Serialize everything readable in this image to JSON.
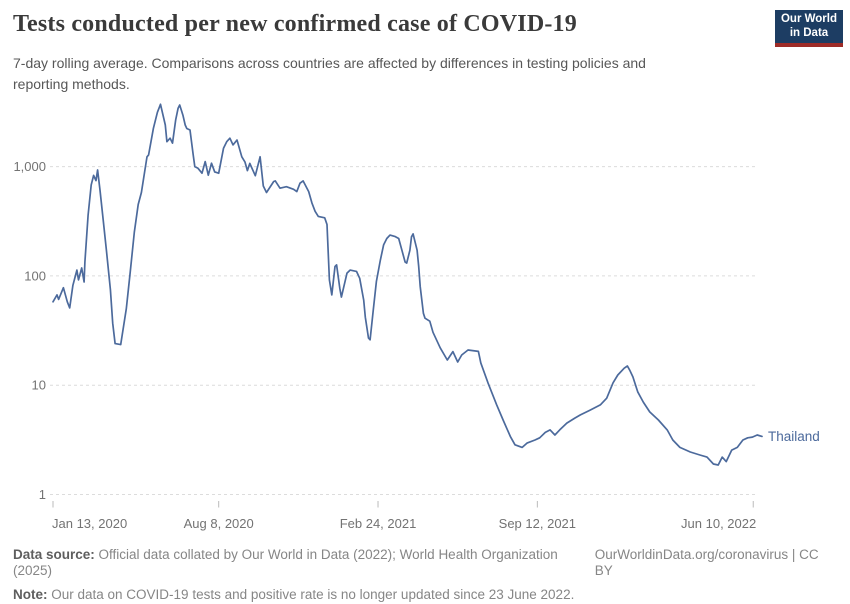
{
  "logo": {
    "line1": "Our World",
    "line2": "in Data"
  },
  "chart_data": {
    "type": "line",
    "title": "Tests conducted per new confirmed case of COVID-19",
    "subtitle_lines": [
      "7-day rolling average. Comparisons across countries are affected by differences in testing policies and",
      "reporting methods."
    ],
    "log_scale_y": true,
    "grid": "horizontal-dashed",
    "ylim": [
      1,
      4000
    ],
    "y_ticks": [
      {
        "value": 1000,
        "label": "1,000"
      },
      {
        "value": 100,
        "label": "100"
      },
      {
        "value": 10,
        "label": "10"
      },
      {
        "value": 1,
        "label": "1"
      }
    ],
    "x_axis_note": "days since Jan 13, 2020",
    "x_range_days": [
      0,
      890
    ],
    "x_ticks": [
      {
        "day": 0,
        "label": "Jan 13, 2020"
      },
      {
        "day": 208,
        "label": "Aug 8, 2020"
      },
      {
        "day": 408,
        "label": "Feb 24, 2021"
      },
      {
        "day": 608,
        "label": "Sep 12, 2021"
      },
      {
        "day": 879,
        "label": "Jun 10, 2022"
      }
    ],
    "legend_position": "end-of-line",
    "series": [
      {
        "name": "Thailand",
        "color": "#4C6A9C",
        "points": [
          [
            0,
            58
          ],
          [
            5,
            67
          ],
          [
            7,
            61
          ],
          [
            13,
            78
          ],
          [
            18,
            58
          ],
          [
            21,
            51
          ],
          [
            25,
            82
          ],
          [
            30,
            113
          ],
          [
            32,
            92
          ],
          [
            36,
            118
          ],
          [
            39,
            88
          ],
          [
            40,
            134
          ],
          [
            44,
            360
          ],
          [
            48,
            680
          ],
          [
            51,
            830
          ],
          [
            54,
            745
          ],
          [
            56,
            930
          ],
          [
            59,
            610
          ],
          [
            63,
            325
          ],
          [
            67,
            172
          ],
          [
            72,
            75
          ],
          [
            75,
            37
          ],
          [
            78,
            24
          ],
          [
            85,
            23.5
          ],
          [
            92,
            50
          ],
          [
            97,
            110
          ],
          [
            102,
            250
          ],
          [
            107,
            450
          ],
          [
            111,
            580
          ],
          [
            118,
            1230
          ],
          [
            120,
            1280
          ],
          [
            126,
            2240
          ],
          [
            131,
            3140
          ],
          [
            135,
            3715
          ],
          [
            141,
            2400
          ],
          [
            143,
            1690
          ],
          [
            147,
            1820
          ],
          [
            150,
            1640
          ],
          [
            154,
            2680
          ],
          [
            157,
            3420
          ],
          [
            159,
            3660
          ],
          [
            163,
            2960
          ],
          [
            166,
            2400
          ],
          [
            168,
            2230
          ],
          [
            172,
            2160
          ],
          [
            176,
            1280
          ],
          [
            178,
            1000
          ],
          [
            182,
            965
          ],
          [
            187,
            870
          ],
          [
            191,
            1110
          ],
          [
            195,
            835
          ],
          [
            199,
            1075
          ],
          [
            203,
            895
          ],
          [
            208,
            870
          ],
          [
            214,
            1470
          ],
          [
            218,
            1690
          ],
          [
            222,
            1820
          ],
          [
            226,
            1580
          ],
          [
            231,
            1750
          ],
          [
            237,
            1230
          ],
          [
            241,
            1100
          ],
          [
            244,
            920
          ],
          [
            247,
            1070
          ],
          [
            254,
            825
          ],
          [
            260,
            1230
          ],
          [
            264,
            665
          ],
          [
            268,
            580
          ],
          [
            277,
            730
          ],
          [
            279,
            740
          ],
          [
            285,
            635
          ],
          [
            293,
            655
          ],
          [
            302,
            620
          ],
          [
            306,
            590
          ],
          [
            310,
            705
          ],
          [
            314,
            740
          ],
          [
            321,
            590
          ],
          [
            325,
            465
          ],
          [
            329,
            390
          ],
          [
            333,
            350
          ],
          [
            341,
            340
          ],
          [
            344,
            295
          ],
          [
            347,
            92
          ],
          [
            350,
            67
          ],
          [
            354,
            122
          ],
          [
            356,
            126
          ],
          [
            360,
            77
          ],
          [
            362,
            64
          ],
          [
            369,
            106
          ],
          [
            373,
            113
          ],
          [
            381,
            110
          ],
          [
            385,
            95
          ],
          [
            390,
            60
          ],
          [
            392,
            42
          ],
          [
            396,
            27
          ],
          [
            398,
            26
          ],
          [
            402,
            48
          ],
          [
            406,
            89
          ],
          [
            411,
            140
          ],
          [
            415,
            192
          ],
          [
            419,
            220
          ],
          [
            423,
            236
          ],
          [
            429,
            230
          ],
          [
            434,
            220
          ],
          [
            438,
            172
          ],
          [
            442,
            134
          ],
          [
            444,
            131
          ],
          [
            448,
            172
          ],
          [
            450,
            228
          ],
          [
            452,
            242
          ],
          [
            457,
            172
          ],
          [
            459,
            122
          ],
          [
            461,
            80
          ],
          [
            465,
            45.5
          ],
          [
            467,
            41
          ],
          [
            473,
            38.5
          ],
          [
            477,
            30.5
          ],
          [
            486,
            22
          ],
          [
            495,
            17
          ],
          [
            502,
            20.3
          ],
          [
            508,
            16.3
          ],
          [
            513,
            18.9
          ],
          [
            521,
            21
          ],
          [
            534,
            20.4
          ],
          [
            537,
            16
          ],
          [
            546,
            10.5
          ],
          [
            557,
            6.6
          ],
          [
            565,
            4.8
          ],
          [
            574,
            3.4
          ],
          [
            580,
            2.85
          ],
          [
            589,
            2.7
          ],
          [
            595,
            2.95
          ],
          [
            605,
            3.15
          ],
          [
            611,
            3.3
          ],
          [
            618,
            3.7
          ],
          [
            624,
            3.9
          ],
          [
            630,
            3.5
          ],
          [
            636,
            3.9
          ],
          [
            645,
            4.5
          ],
          [
            655,
            5
          ],
          [
            662,
            5.35
          ],
          [
            674,
            5.9
          ],
          [
            687,
            6.6
          ],
          [
            695,
            7.6
          ],
          [
            703,
            10.5
          ],
          [
            709,
            12.4
          ],
          [
            717,
            14.3
          ],
          [
            721,
            15
          ],
          [
            724,
            13.7
          ],
          [
            728,
            11.9
          ],
          [
            734,
            8.7
          ],
          [
            741,
            7
          ],
          [
            749,
            5.7
          ],
          [
            760,
            4.8
          ],
          [
            771,
            3.9
          ],
          [
            778,
            3.15
          ],
          [
            787,
            2.7
          ],
          [
            800,
            2.45
          ],
          [
            812,
            2.3
          ],
          [
            821,
            2.2
          ],
          [
            829,
            1.9
          ],
          [
            835,
            1.86
          ],
          [
            840,
            2.2
          ],
          [
            845,
            2
          ],
          [
            852,
            2.55
          ],
          [
            859,
            2.7
          ],
          [
            866,
            3.15
          ],
          [
            872,
            3.3
          ],
          [
            878,
            3.35
          ],
          [
            884,
            3.5
          ],
          [
            890,
            3.4
          ]
        ]
      }
    ]
  },
  "footer": {
    "source_label": "Data source:",
    "source_text": " Official data collated by Our World in Data (2022); World Health Organization (2025)",
    "link": "OurWorldinData.org/coronavirus | CC BY",
    "note_label": "Note:",
    "note_text": " Our data on COVID-19 tests and positive rate is no longer updated since 23 June 2022."
  }
}
